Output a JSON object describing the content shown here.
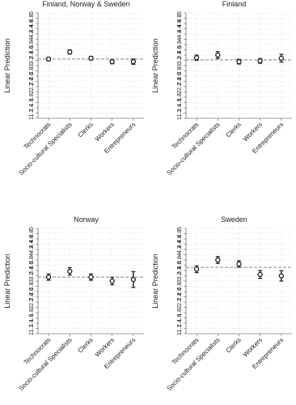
{
  "chart_data": [
    {
      "type": "errorbar",
      "title": "Finland, Norway & Sweden",
      "y_label": "Linear Prediction",
      "categories": [
        "Technocrats",
        "Socio-cultural Specialists",
        "Clerks",
        "Workers",
        "Entrepreneurs"
      ],
      "values": [
        3.25,
        3.52,
        3.28,
        3.15,
        3.15
      ],
      "errors": [
        0.07,
        0.08,
        0.07,
        0.08,
        0.1
      ],
      "reference_line": 3.25,
      "color": "#222222",
      "ylim": [
        1,
        5
      ],
      "yticks": [
        1,
        1.2,
        1.4,
        1.6,
        1.8,
        2,
        2.2,
        2.4,
        2.6,
        2.8,
        3,
        3.2,
        3.4,
        3.6,
        3.8,
        4,
        4.2,
        4.4,
        4.6,
        4.8,
        5
      ],
      "grid": true
    },
    {
      "type": "errorbar",
      "title": "Finland",
      "y_label": "Linear Prediction",
      "categories": [
        "Technocrats",
        "Socio-cultural Specialists",
        "Clerks",
        "Workers",
        "Entrepreneurs"
      ],
      "values": [
        3.3,
        3.4,
        3.15,
        3.18,
        3.28
      ],
      "errors": [
        0.1,
        0.13,
        0.09,
        0.09,
        0.15
      ],
      "reference_line": 3.22,
      "color": "#222222",
      "ylim": [
        1,
        5
      ],
      "yticks": [
        1,
        1.2,
        1.4,
        1.6,
        1.8,
        2,
        2.2,
        2.4,
        2.6,
        2.8,
        3,
        3.2,
        3.4,
        3.6,
        3.8,
        4,
        4.2,
        4.4,
        4.6,
        4.8,
        5
      ],
      "grid": true
    },
    {
      "type": "errorbar",
      "title": "Norway",
      "y_label": "Linear Prediction",
      "categories": [
        "Technocrats",
        "Socio-cultural Specialists",
        "Clerks",
        "Workers",
        "Entrepreneurs"
      ],
      "values": [
        3.15,
        3.37,
        3.15,
        3.0,
        3.06
      ],
      "errors": [
        0.12,
        0.14,
        0.12,
        0.14,
        0.3
      ],
      "reference_line": 3.15,
      "color": "#222222",
      "ylim": [
        1,
        5
      ],
      "yticks": [
        1,
        1.2,
        1.4,
        1.6,
        1.8,
        2,
        2.2,
        2.4,
        2.6,
        2.8,
        3,
        3.2,
        3.4,
        3.6,
        3.8,
        4,
        4.2,
        4.4,
        4.6,
        4.8,
        5
      ],
      "grid": true
    },
    {
      "type": "errorbar",
      "title": "Sweden",
      "y_label": "Linear Prediction",
      "categories": [
        "Technocrats",
        "Socio-cultural Specialists",
        "Clerks",
        "Workers",
        "Entrepreneurs"
      ],
      "values": [
        3.45,
        3.8,
        3.65,
        3.25,
        3.2
      ],
      "errors": [
        0.13,
        0.13,
        0.12,
        0.15,
        0.2
      ],
      "reference_line": 3.52,
      "color": "#222222",
      "ylim": [
        1,
        5
      ],
      "yticks": [
        1,
        1.2,
        1.4,
        1.6,
        1.8,
        2,
        2.2,
        2.4,
        2.6,
        2.8,
        3,
        3.2,
        3.4,
        3.6,
        3.8,
        4,
        4.2,
        4.4,
        4.6,
        4.8,
        5
      ],
      "grid": true
    }
  ]
}
